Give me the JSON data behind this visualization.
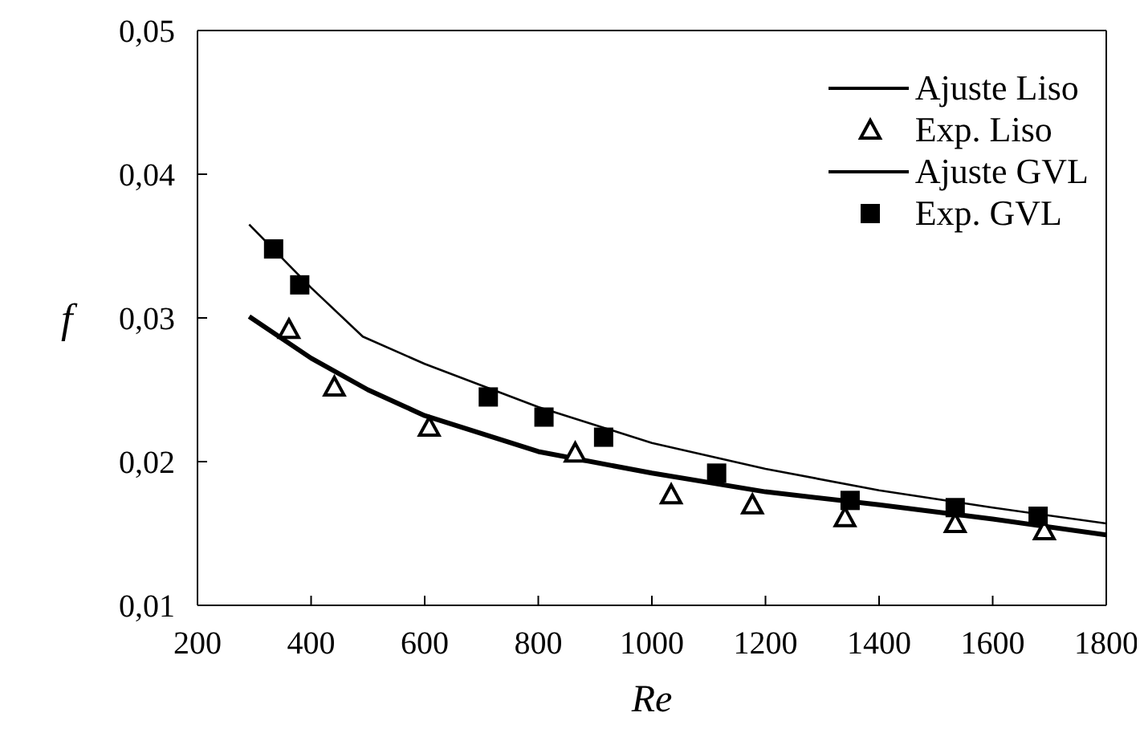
{
  "chart_data": {
    "type": "scatter",
    "xlabel": "Re",
    "ylabel": "f",
    "xlim": [
      200,
      1800
    ],
    "xticks": [
      200,
      400,
      600,
      800,
      1000,
      1200,
      1400,
      1600,
      1800
    ],
    "ylim": [
      0.01,
      0.05
    ],
    "yticks": [
      {
        "value": 0.01,
        "label": "0,01"
      },
      {
        "value": 0.02,
        "label": "0,02"
      },
      {
        "value": 0.03,
        "label": "0,03"
      },
      {
        "value": 0.04,
        "label": "0,04"
      },
      {
        "value": 0.05,
        "label": "0,05"
      }
    ],
    "legend": "top right",
    "series": [
      {
        "name": "Ajuste Liso",
        "type": "line",
        "marker": "none",
        "color": "#000000",
        "x": [
          291,
          400,
          500,
          600,
          800,
          1000,
          1200,
          1400,
          1600,
          1800
        ],
        "values": [
          0.0301,
          0.0272,
          0.025,
          0.0232,
          0.0207,
          0.0192,
          0.0179,
          0.017,
          0.016,
          0.0149
        ]
      },
      {
        "name": "Exp. Liso",
        "marker": "triangle",
        "color": "#000000",
        "x": [
          361,
          441,
          608,
          865,
          1034,
          1177,
          1340,
          1534,
          1691
        ],
        "values": [
          0.0292,
          0.0252,
          0.0224,
          0.0206,
          0.0177,
          0.017,
          0.0161,
          0.0157,
          0.0152
        ]
      },
      {
        "name": "Ajuste GVL",
        "type": "line",
        "marker": "none",
        "color": "#000000",
        "x": [
          291,
          400,
          491,
          600,
          800,
          1000,
          1200,
          1400,
          1600,
          1800
        ],
        "values": [
          0.0365,
          0.0321,
          0.0287,
          0.0268,
          0.0238,
          0.0213,
          0.0195,
          0.018,
          0.0168,
          0.0157
        ]
      },
      {
        "name": "Exp. GVL",
        "marker": "square",
        "color": "#000000",
        "x": [
          334,
          380,
          712,
          810,
          915,
          1114,
          1349,
          1534,
          1680
        ],
        "values": [
          0.0348,
          0.0323,
          0.0245,
          0.0231,
          0.0217,
          0.0192,
          0.0173,
          0.0168,
          0.0162
        ]
      }
    ]
  }
}
